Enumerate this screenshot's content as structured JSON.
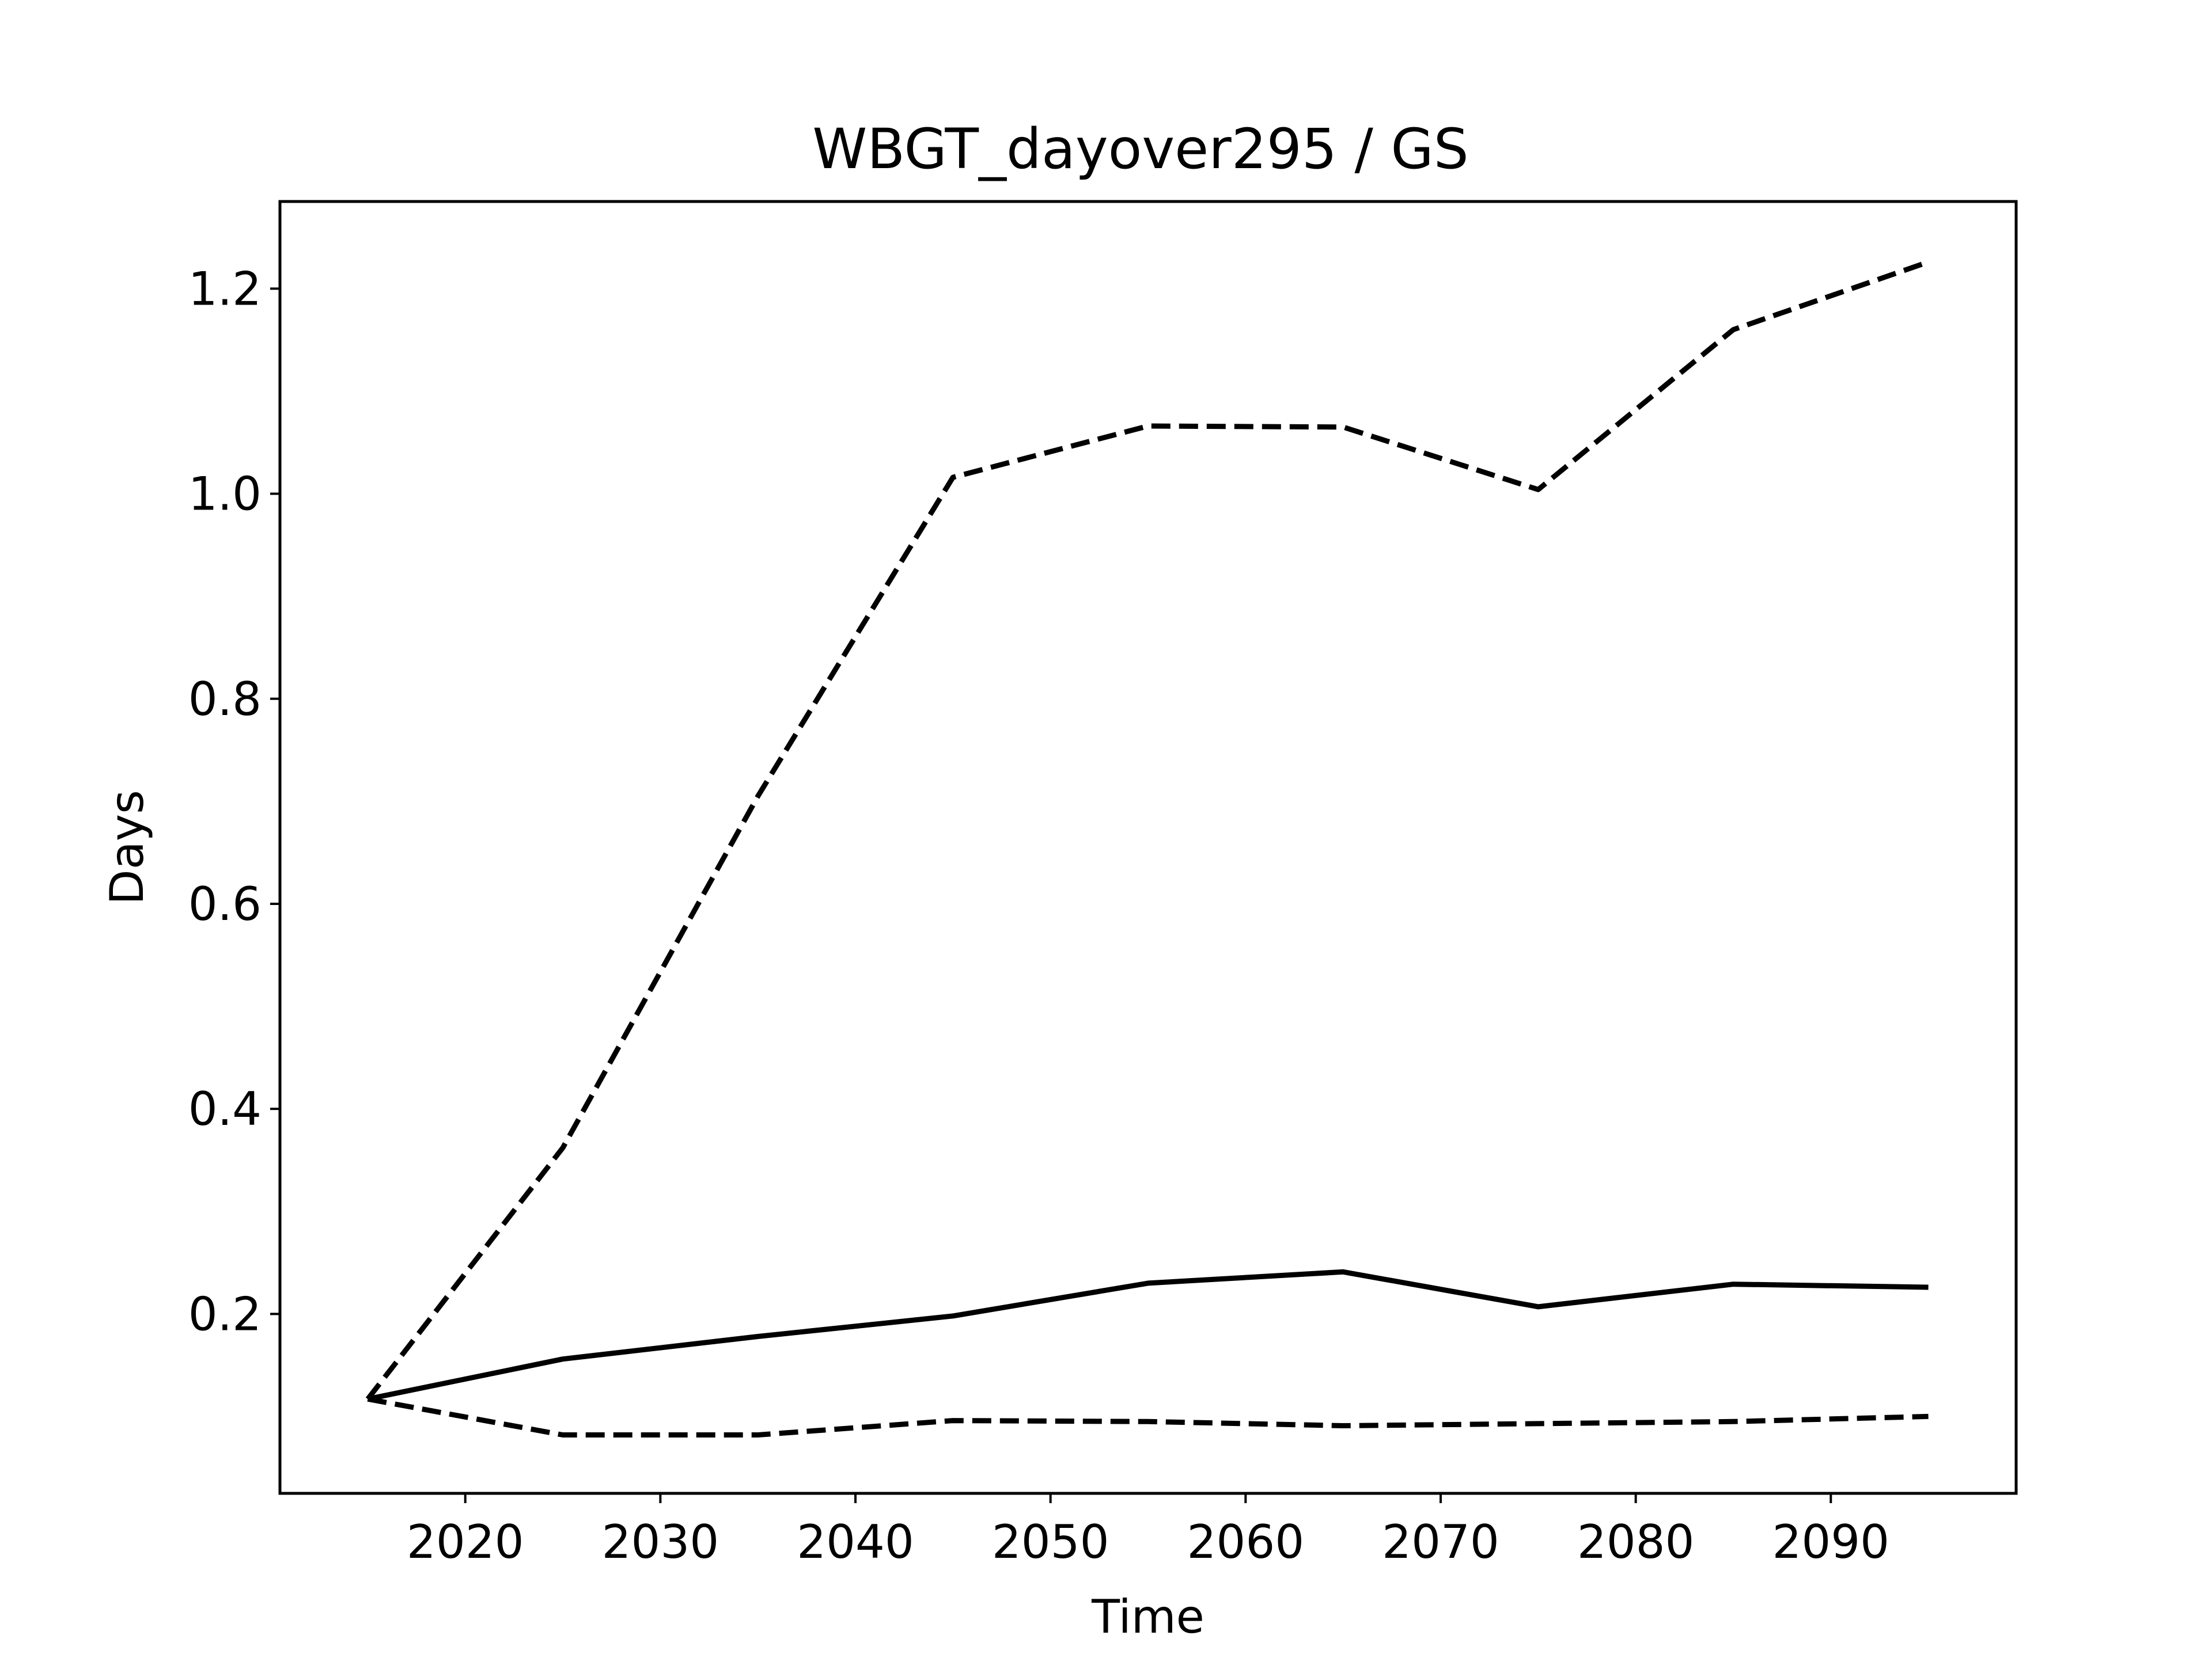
{
  "chart_data": {
    "type": "line",
    "title": "WBGT_dayover295 / GS",
    "xlabel": "Time",
    "ylabel": "Days",
    "xlim": [
      2010.5,
      2099.5
    ],
    "ylim": [
      0.025,
      1.285
    ],
    "xticks": [
      2020,
      2030,
      2040,
      2050,
      2060,
      2070,
      2080,
      2090
    ],
    "yticks": [
      0.2,
      0.4,
      0.6,
      0.8,
      1.0,
      1.2
    ],
    "grid": false,
    "legend": "none",
    "x": [
      2015,
      2025,
      2035,
      2045,
      2055,
      2065,
      2075,
      2085,
      2095
    ],
    "series": [
      {
        "style": "solid",
        "color": "#000000",
        "values": [
          0.117,
          0.156,
          0.178,
          0.198,
          0.23,
          0.241,
          0.207,
          0.229,
          0.226
        ]
      },
      {
        "style": "dashed",
        "color": "#000000",
        "values": [
          0.117,
          0.362,
          0.705,
          1.016,
          1.066,
          1.065,
          1.004,
          1.16,
          1.226
        ]
      },
      {
        "style": "dashed",
        "color": "#000000",
        "values": [
          0.117,
          0.082,
          0.082,
          0.096,
          0.095,
          0.091,
          0.093,
          0.095,
          0.1
        ]
      }
    ]
  }
}
